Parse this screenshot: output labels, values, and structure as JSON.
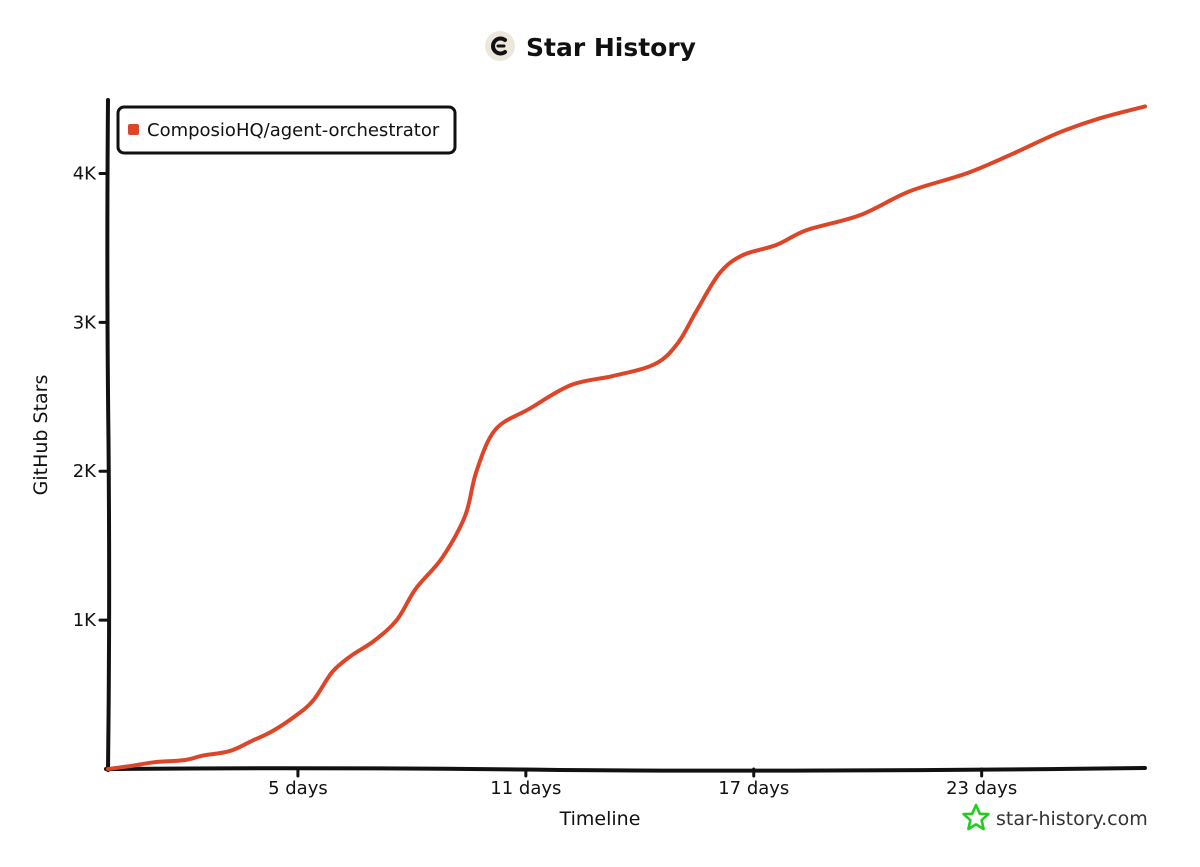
{
  "title": "Star History",
  "watermark": "star-history.com",
  "colors": {
    "series": "#dd4528",
    "axis": "#111111",
    "logo_bg": "#ece6dc",
    "watermark_star": "#22cc22"
  },
  "icons": {
    "title_logo": "star-history-logo-icon",
    "watermark_logo": "star-outline-icon"
  },
  "chart_data": {
    "type": "line",
    "title": "Star History",
    "xlabel": "Timeline",
    "ylabel": "GitHub Stars",
    "xlim": [
      0,
      27.3
    ],
    "ylim": [
      0,
      4500
    ],
    "x_ticks": [
      {
        "value": 5,
        "label": "5 days"
      },
      {
        "value": 11,
        "label": "11 days"
      },
      {
        "value": 17,
        "label": "17 days"
      },
      {
        "value": 23,
        "label": "23 days"
      }
    ],
    "y_ticks": [
      {
        "value": 1000,
        "label": "1K"
      },
      {
        "value": 2000,
        "label": "2K"
      },
      {
        "value": 3000,
        "label": "3K"
      },
      {
        "value": 4000,
        "label": "4K"
      }
    ],
    "grid": false,
    "legend": "top-left",
    "series": [
      {
        "name": "ComposioHQ/agent-orchestrator",
        "color": "#dd4528",
        "points": [
          [
            0.0,
            0
          ],
          [
            0.6,
            20
          ],
          [
            1.2,
            45
          ],
          [
            2.0,
            60
          ],
          [
            2.5,
            90
          ],
          [
            3.2,
            120
          ],
          [
            3.8,
            190
          ],
          [
            4.3,
            250
          ],
          [
            4.9,
            350
          ],
          [
            5.4,
            460
          ],
          [
            5.9,
            650
          ],
          [
            6.4,
            760
          ],
          [
            7.0,
            860
          ],
          [
            7.6,
            1000
          ],
          [
            8.1,
            1210
          ],
          [
            8.8,
            1420
          ],
          [
            9.4,
            1700
          ],
          [
            9.7,
            2000
          ],
          [
            10.2,
            2280
          ],
          [
            11.1,
            2420
          ],
          [
            12.2,
            2580
          ],
          [
            13.3,
            2640
          ],
          [
            14.4,
            2720
          ],
          [
            15.0,
            2860
          ],
          [
            15.5,
            3080
          ],
          [
            16.1,
            3330
          ],
          [
            16.7,
            3450
          ],
          [
            17.6,
            3520
          ],
          [
            18.4,
            3620
          ],
          [
            19.8,
            3720
          ],
          [
            21.1,
            3880
          ],
          [
            22.6,
            4000
          ],
          [
            23.8,
            4130
          ],
          [
            25.0,
            4270
          ],
          [
            26.1,
            4370
          ],
          [
            27.3,
            4450
          ]
        ]
      }
    ]
  }
}
